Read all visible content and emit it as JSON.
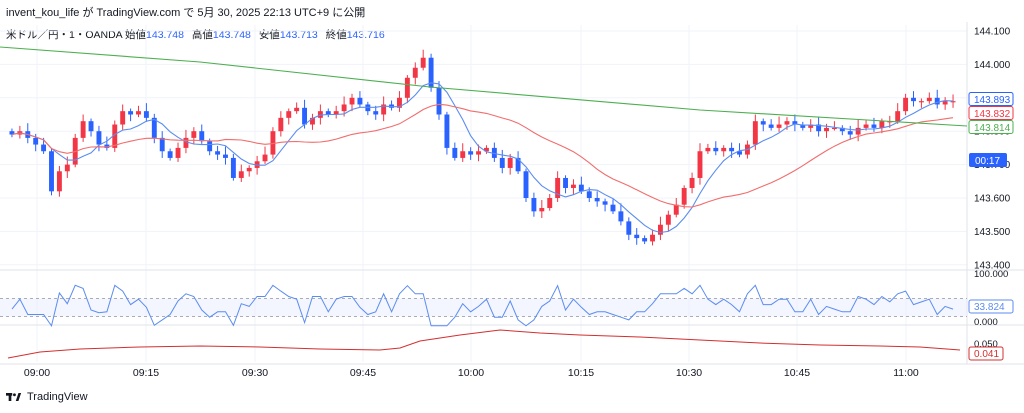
{
  "header": {
    "publisher_line": "invent_kou_life が TradingView.com で 5月 30, 2025 22:13 UTC+9 に公開"
  },
  "legend": {
    "symbol": "米ドル／円・1・OANDA",
    "open_label": "始値",
    "open": "143.748",
    "high_label": "高値",
    "high": "143.748",
    "low_label": "安値",
    "low": "143.713",
    "close_label": "終値",
    "close": "143.716"
  },
  "footer": {
    "brand": "TradingView"
  },
  "colors": {
    "up": "#f23645",
    "down": "#2962ff",
    "ma_fast": "#5b8def",
    "ma_mid": "#f26d6d",
    "ma_slow": "#4caf50",
    "rsi": "#5b8def",
    "atr": "#d32f2f"
  },
  "chart_data": [
    {
      "type": "candlestick",
      "symbol": "USD/JPY 1min OANDA",
      "x_ticks": [
        "09:00",
        "09:15",
        "09:30",
        "09:45",
        "10:00",
        "10:15",
        "10:30",
        "10:45",
        "11:00"
      ],
      "y_ticks": [
        "144.100",
        "144.000",
        "143.900",
        "143.800",
        "143.700",
        "143.600",
        "143.500",
        "143.400"
      ],
      "ylim": [
        143.37,
        144.12
      ],
      "price_labels": [
        {
          "value": "143.893",
          "color": "#2962ff",
          "kind": "outline"
        },
        {
          "value": "143.832",
          "color": "#f23645",
          "kind": "outline"
        },
        {
          "value": "143.814",
          "color": "#4caf50",
          "kind": "outline"
        },
        {
          "value": "00:17",
          "color": "#2962ff",
          "kind": "filled"
        }
      ],
      "closes": [
        143.79,
        143.8,
        143.78,
        143.76,
        143.74,
        143.62,
        143.68,
        143.7,
        143.78,
        143.83,
        143.8,
        143.76,
        143.75,
        143.82,
        143.86,
        143.85,
        143.86,
        143.84,
        143.78,
        143.74,
        143.72,
        143.75,
        143.78,
        143.8,
        143.77,
        143.74,
        143.73,
        143.72,
        143.66,
        143.68,
        143.69,
        143.71,
        143.73,
        143.8,
        143.84,
        143.86,
        143.87,
        143.82,
        143.84,
        143.86,
        143.85,
        143.86,
        143.88,
        143.9,
        143.88,
        143.86,
        143.85,
        143.88,
        143.87,
        143.9,
        143.96,
        143.99,
        144.02,
        143.93,
        143.85,
        143.75,
        143.72,
        143.74,
        143.73,
        143.74,
        143.75,
        143.72,
        143.69,
        143.72,
        143.68,
        143.6,
        143.56,
        143.57,
        143.6,
        143.66,
        143.63,
        143.64,
        143.62,
        143.6,
        143.59,
        143.58,
        143.56,
        143.53,
        143.49,
        143.48,
        143.47,
        143.49,
        143.52,
        143.55,
        143.58,
        143.63,
        143.66,
        143.74,
        143.75,
        143.74,
        143.75,
        143.74,
        143.73,
        143.76,
        143.83,
        143.82,
        143.81,
        143.82,
        143.83,
        143.82,
        143.81,
        143.82,
        143.8,
        143.81,
        143.81,
        143.8,
        143.79,
        143.81,
        143.82,
        143.81,
        143.83,
        143.83,
        143.86,
        143.9,
        143.89,
        143.89,
        143.9,
        143.88,
        143.89,
        143.89
      ]
    },
    {
      "type": "line",
      "title": "RSI",
      "y_ticks": [
        "100.000",
        "0.000"
      ],
      "ylim": [
        0,
        100
      ],
      "last_value": "33.824"
    },
    {
      "type": "line",
      "title": "ATR",
      "y_ticks": [
        "0.050"
      ],
      "last_value": "0.041"
    }
  ]
}
